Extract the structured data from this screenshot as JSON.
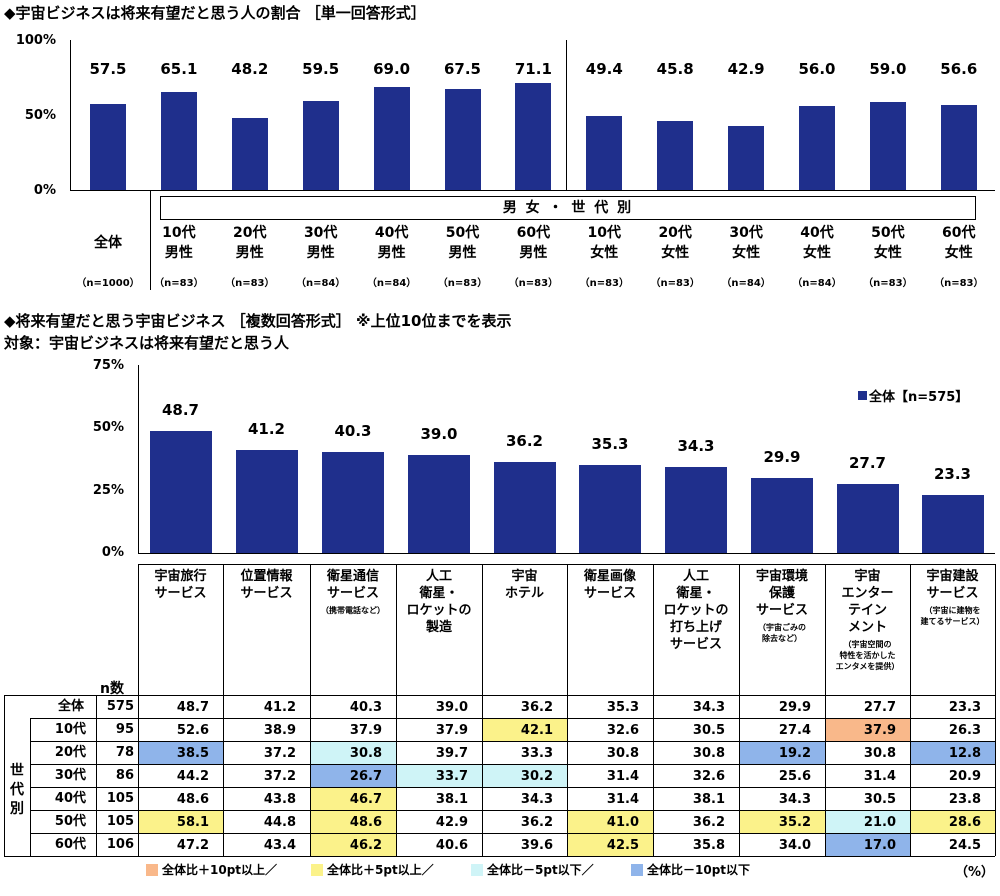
{
  "chart1": {
    "title": "◆宇宙ビジネスは将来有望だと思う人の割合 ［単一回答形式］",
    "yticks": [
      "100%",
      "50%",
      "0%"
    ],
    "banner": "男 女 ・ 世 代 別",
    "chart_data": {
      "type": "bar",
      "title": "宇宙ビジネスは将来有望だと思う人の割合",
      "categories": [
        "全体",
        "10代 男性",
        "20代 男性",
        "30代 男性",
        "40代 男性",
        "50代 男性",
        "60代 男性",
        "10代 女性",
        "20代 女性",
        "30代 女性",
        "40代 女性",
        "50代 女性",
        "60代 女性"
      ],
      "values": [
        57.5,
        65.1,
        48.2,
        59.5,
        69.0,
        67.5,
        71.1,
        49.4,
        45.8,
        42.9,
        56.0,
        59.0,
        56.6
      ],
      "value_labels": [
        "57.5",
        "65.1",
        "48.2",
        "59.5",
        "69.0",
        "67.5",
        "71.1",
        "49.4",
        "45.8",
        "42.9",
        "56.0",
        "59.0",
        "56.6"
      ],
      "ylim": [
        0,
        100
      ],
      "color": "#1f2f8c"
    },
    "groups": [
      {
        "l1": "全体",
        "l2": "",
        "n": "（n=1000）"
      },
      {
        "l1": "10代",
        "l2": "男性",
        "n": "（n=83）"
      },
      {
        "l1": "20代",
        "l2": "男性",
        "n": "（n=83）"
      },
      {
        "l1": "30代",
        "l2": "男性",
        "n": "（n=84）"
      },
      {
        "l1": "40代",
        "l2": "男性",
        "n": "（n=84）"
      },
      {
        "l1": "50代",
        "l2": "男性",
        "n": "（n=83）"
      },
      {
        "l1": "60代",
        "l2": "男性",
        "n": "（n=83）"
      },
      {
        "l1": "10代",
        "l2": "女性",
        "n": "（n=83）"
      },
      {
        "l1": "20代",
        "l2": "女性",
        "n": "（n=83）"
      },
      {
        "l1": "30代",
        "l2": "女性",
        "n": "（n=84）"
      },
      {
        "l1": "40代",
        "l2": "女性",
        "n": "（n=84）"
      },
      {
        "l1": "50代",
        "l2": "女性",
        "n": "（n=83）"
      },
      {
        "l1": "60代",
        "l2": "女性",
        "n": "（n=83）"
      }
    ]
  },
  "chart2": {
    "title": "◆将来有望だと思う宇宙ビジネス ［複数回答形式］ ※上位10位までを表示",
    "subtitle": "対象：宇宙ビジネスは将来有望だと思う人",
    "yticks": [
      "75%",
      "50%",
      "25%",
      "0%"
    ],
    "legend": "全体【n=575】",
    "chart_data": {
      "type": "bar",
      "title": "将来有望だと思う宇宙ビジネス",
      "categories": [
        "宇宙旅行サービス",
        "位置情報サービス",
        "衛星通信サービス",
        "人工衛星・ロケットの製造",
        "宇宙ホテル",
        "衛星画像サービス",
        "人工衛星・ロケットの打ち上げサービス",
        "宇宙環境保護サービス",
        "宇宙エンターテインメント",
        "宇宙建設サービス"
      ],
      "values": [
        48.7,
        41.2,
        40.3,
        39.0,
        36.2,
        35.3,
        34.3,
        29.9,
        27.7,
        23.3
      ],
      "value_labels": [
        "48.7",
        "41.2",
        "40.3",
        "39.0",
        "36.2",
        "35.3",
        "34.3",
        "29.9",
        "27.7",
        "23.3"
      ],
      "ylim": [
        0,
        75
      ],
      "series_name": "全体【n=575】",
      "color": "#1f2f8c"
    },
    "headers": [
      {
        "lines": [
          "宇宙旅行",
          "サービス"
        ],
        "sub": []
      },
      {
        "lines": [
          "位置情報",
          "サービス"
        ],
        "sub": []
      },
      {
        "lines": [
          "衛星通信",
          "サービス"
        ],
        "sub": [
          "（携帯電話など）"
        ]
      },
      {
        "lines": [
          "人工",
          "衛星・",
          "ロケットの",
          "製造"
        ],
        "sub": []
      },
      {
        "lines": [
          "宇宙",
          "ホテル"
        ],
        "sub": []
      },
      {
        "lines": [
          "衛星画像",
          "サービス"
        ],
        "sub": []
      },
      {
        "lines": [
          "人工",
          "衛星・",
          "ロケットの",
          "打ち上げ",
          "サービス"
        ],
        "sub": []
      },
      {
        "lines": [
          "宇宙環境",
          "保護",
          "サービス"
        ],
        "sub": [
          "（宇宙ごみの",
          "除去など）"
        ]
      },
      {
        "lines": [
          "宇宙",
          "エンター",
          "テイン",
          "メント"
        ],
        "sub": [
          "（宇宙空間の",
          "特性を活かした",
          "エンタメを提供）"
        ]
      },
      {
        "lines": [
          "宇宙建設",
          "サービス"
        ],
        "sub": [
          "（宇宙に建物を",
          "建てるサービス）"
        ]
      }
    ]
  },
  "table": {
    "n_header": "n数",
    "side_label": "世代別",
    "rows": [
      {
        "label": "全体",
        "n": "575",
        "values": [
          "48.7",
          "41.2",
          "40.3",
          "39.0",
          "36.2",
          "35.3",
          "34.3",
          "29.9",
          "27.7",
          "23.3"
        ],
        "hl": [
          "",
          "",
          "",
          "",
          "",
          "",
          "",
          "",
          "",
          ""
        ]
      },
      {
        "label": "10代",
        "n": "95",
        "values": [
          "52.6",
          "38.9",
          "37.9",
          "37.9",
          "42.1",
          "32.6",
          "30.5",
          "27.4",
          "37.9",
          "26.3"
        ],
        "hl": [
          "",
          "",
          "",
          "",
          "p5",
          "",
          "",
          "",
          "p10",
          ""
        ]
      },
      {
        "label": "20代",
        "n": "78",
        "values": [
          "38.5",
          "37.2",
          "30.8",
          "39.7",
          "33.3",
          "30.8",
          "30.8",
          "19.2",
          "30.8",
          "12.8"
        ],
        "hl": [
          "m10",
          "",
          "m5",
          "",
          "",
          "",
          "",
          "m10",
          "",
          "m10"
        ]
      },
      {
        "label": "30代",
        "n": "86",
        "values": [
          "44.2",
          "37.2",
          "26.7",
          "33.7",
          "30.2",
          "31.4",
          "32.6",
          "25.6",
          "31.4",
          "20.9"
        ],
        "hl": [
          "",
          "",
          "m10",
          "m5",
          "m5",
          "",
          "",
          "",
          "",
          ""
        ]
      },
      {
        "label": "40代",
        "n": "105",
        "values": [
          "48.6",
          "43.8",
          "46.7",
          "38.1",
          "34.3",
          "31.4",
          "38.1",
          "34.3",
          "30.5",
          "23.8"
        ],
        "hl": [
          "",
          "",
          "p5",
          "",
          "",
          "",
          "",
          "",
          "",
          ""
        ]
      },
      {
        "label": "50代",
        "n": "105",
        "values": [
          "58.1",
          "44.8",
          "48.6",
          "42.9",
          "36.2",
          "41.0",
          "36.2",
          "35.2",
          "21.0",
          "28.6"
        ],
        "hl": [
          "p5",
          "",
          "p5",
          "",
          "",
          "p5",
          "",
          "p5",
          "m5",
          "p5"
        ]
      },
      {
        "label": "60代",
        "n": "106",
        "values": [
          "47.2",
          "43.4",
          "46.2",
          "40.6",
          "39.6",
          "42.5",
          "35.8",
          "34.0",
          "17.0",
          "24.5"
        ],
        "hl": [
          "",
          "",
          "p5",
          "",
          "",
          "p5",
          "",
          "",
          "m10",
          ""
        ]
      }
    ]
  },
  "legend": {
    "items": [
      {
        "label": "全体比＋10pt以上／",
        "key": "p10"
      },
      {
        "label": "全体比＋5pt以上／",
        "key": "p5"
      },
      {
        "label": "全体比－5pt以下／",
        "key": "m5"
      },
      {
        "label": "全体比－10pt以下",
        "key": "m10"
      }
    ],
    "unit": "（%）"
  },
  "colors": {
    "bar": "#1f2f8c",
    "p10": "#f9b88a",
    "p5": "#fbf28a",
    "m5": "#cff4f7",
    "m10": "#8fb4ea"
  }
}
